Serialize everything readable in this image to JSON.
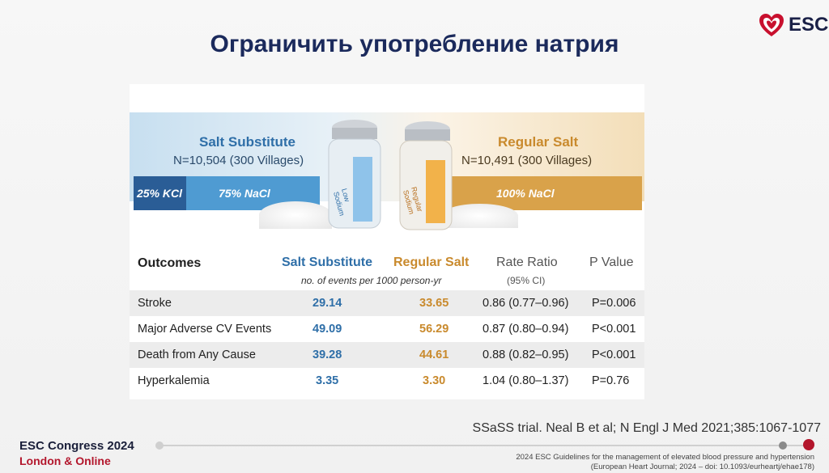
{
  "slide": {
    "title": "Ограничить употребление натрия",
    "logo_text": "ESC",
    "citation": "SSaSS trial. Neal B et al; N Engl J Med 2021;385:1067-1077",
    "congress": "ESC Congress 2024",
    "location": "London & Online",
    "guideline_line1": "2024 ESC Guidelines for the management of elevated blood pressure and hypertension",
    "guideline_line2": "(European Heart Journal; 2024 – doi: 10.1093/eurheartj/ehae178)"
  },
  "figure": {
    "substitute": {
      "title": "Salt Substitute",
      "n": "N=10,504 (300 Villages)",
      "kcl": "25% KCl",
      "nacl": "75% NaCl",
      "label_line1": "Low",
      "label_line2": "Sodium"
    },
    "regular": {
      "title": "Regular Salt",
      "n": "N=10,491 (300 Villages)",
      "nacl": "100% NaCl",
      "label_line1": "Regular",
      "label_line2": "Sodium"
    }
  },
  "table": {
    "headers": {
      "outcomes": "Outcomes",
      "substitute": "Salt Substitute",
      "regular": "Regular Salt",
      "ratio": "Rate Ratio",
      "ratio_sub": "(95% CI)",
      "pvalue": "P Value",
      "events_note": "no. of events per 1000 person-yr"
    },
    "rows": [
      {
        "outcome": "Stroke",
        "substitute": "29.14",
        "regular": "33.65",
        "ratio": "0.86 (0.77–0.96)",
        "p": "P=0.006"
      },
      {
        "outcome": "Major Adverse CV Events",
        "substitute": "49.09",
        "regular": "56.29",
        "ratio": "0.87 (0.80–0.94)",
        "p": "P<0.001"
      },
      {
        "outcome": "Death from Any Cause",
        "substitute": "39.28",
        "regular": "44.61",
        "ratio": "0.88 (0.82–0.95)",
        "p": "P<0.001"
      },
      {
        "outcome": "Hyperkalemia",
        "substitute": "3.35",
        "regular": "3.30",
        "ratio": "1.04 (0.80–1.37)",
        "p": "P=0.76"
      }
    ]
  },
  "colors": {
    "blue": "#2f6fa8",
    "gold": "#c98a2d",
    "navy": "#1b2a5c",
    "red": "#b3162c"
  }
}
